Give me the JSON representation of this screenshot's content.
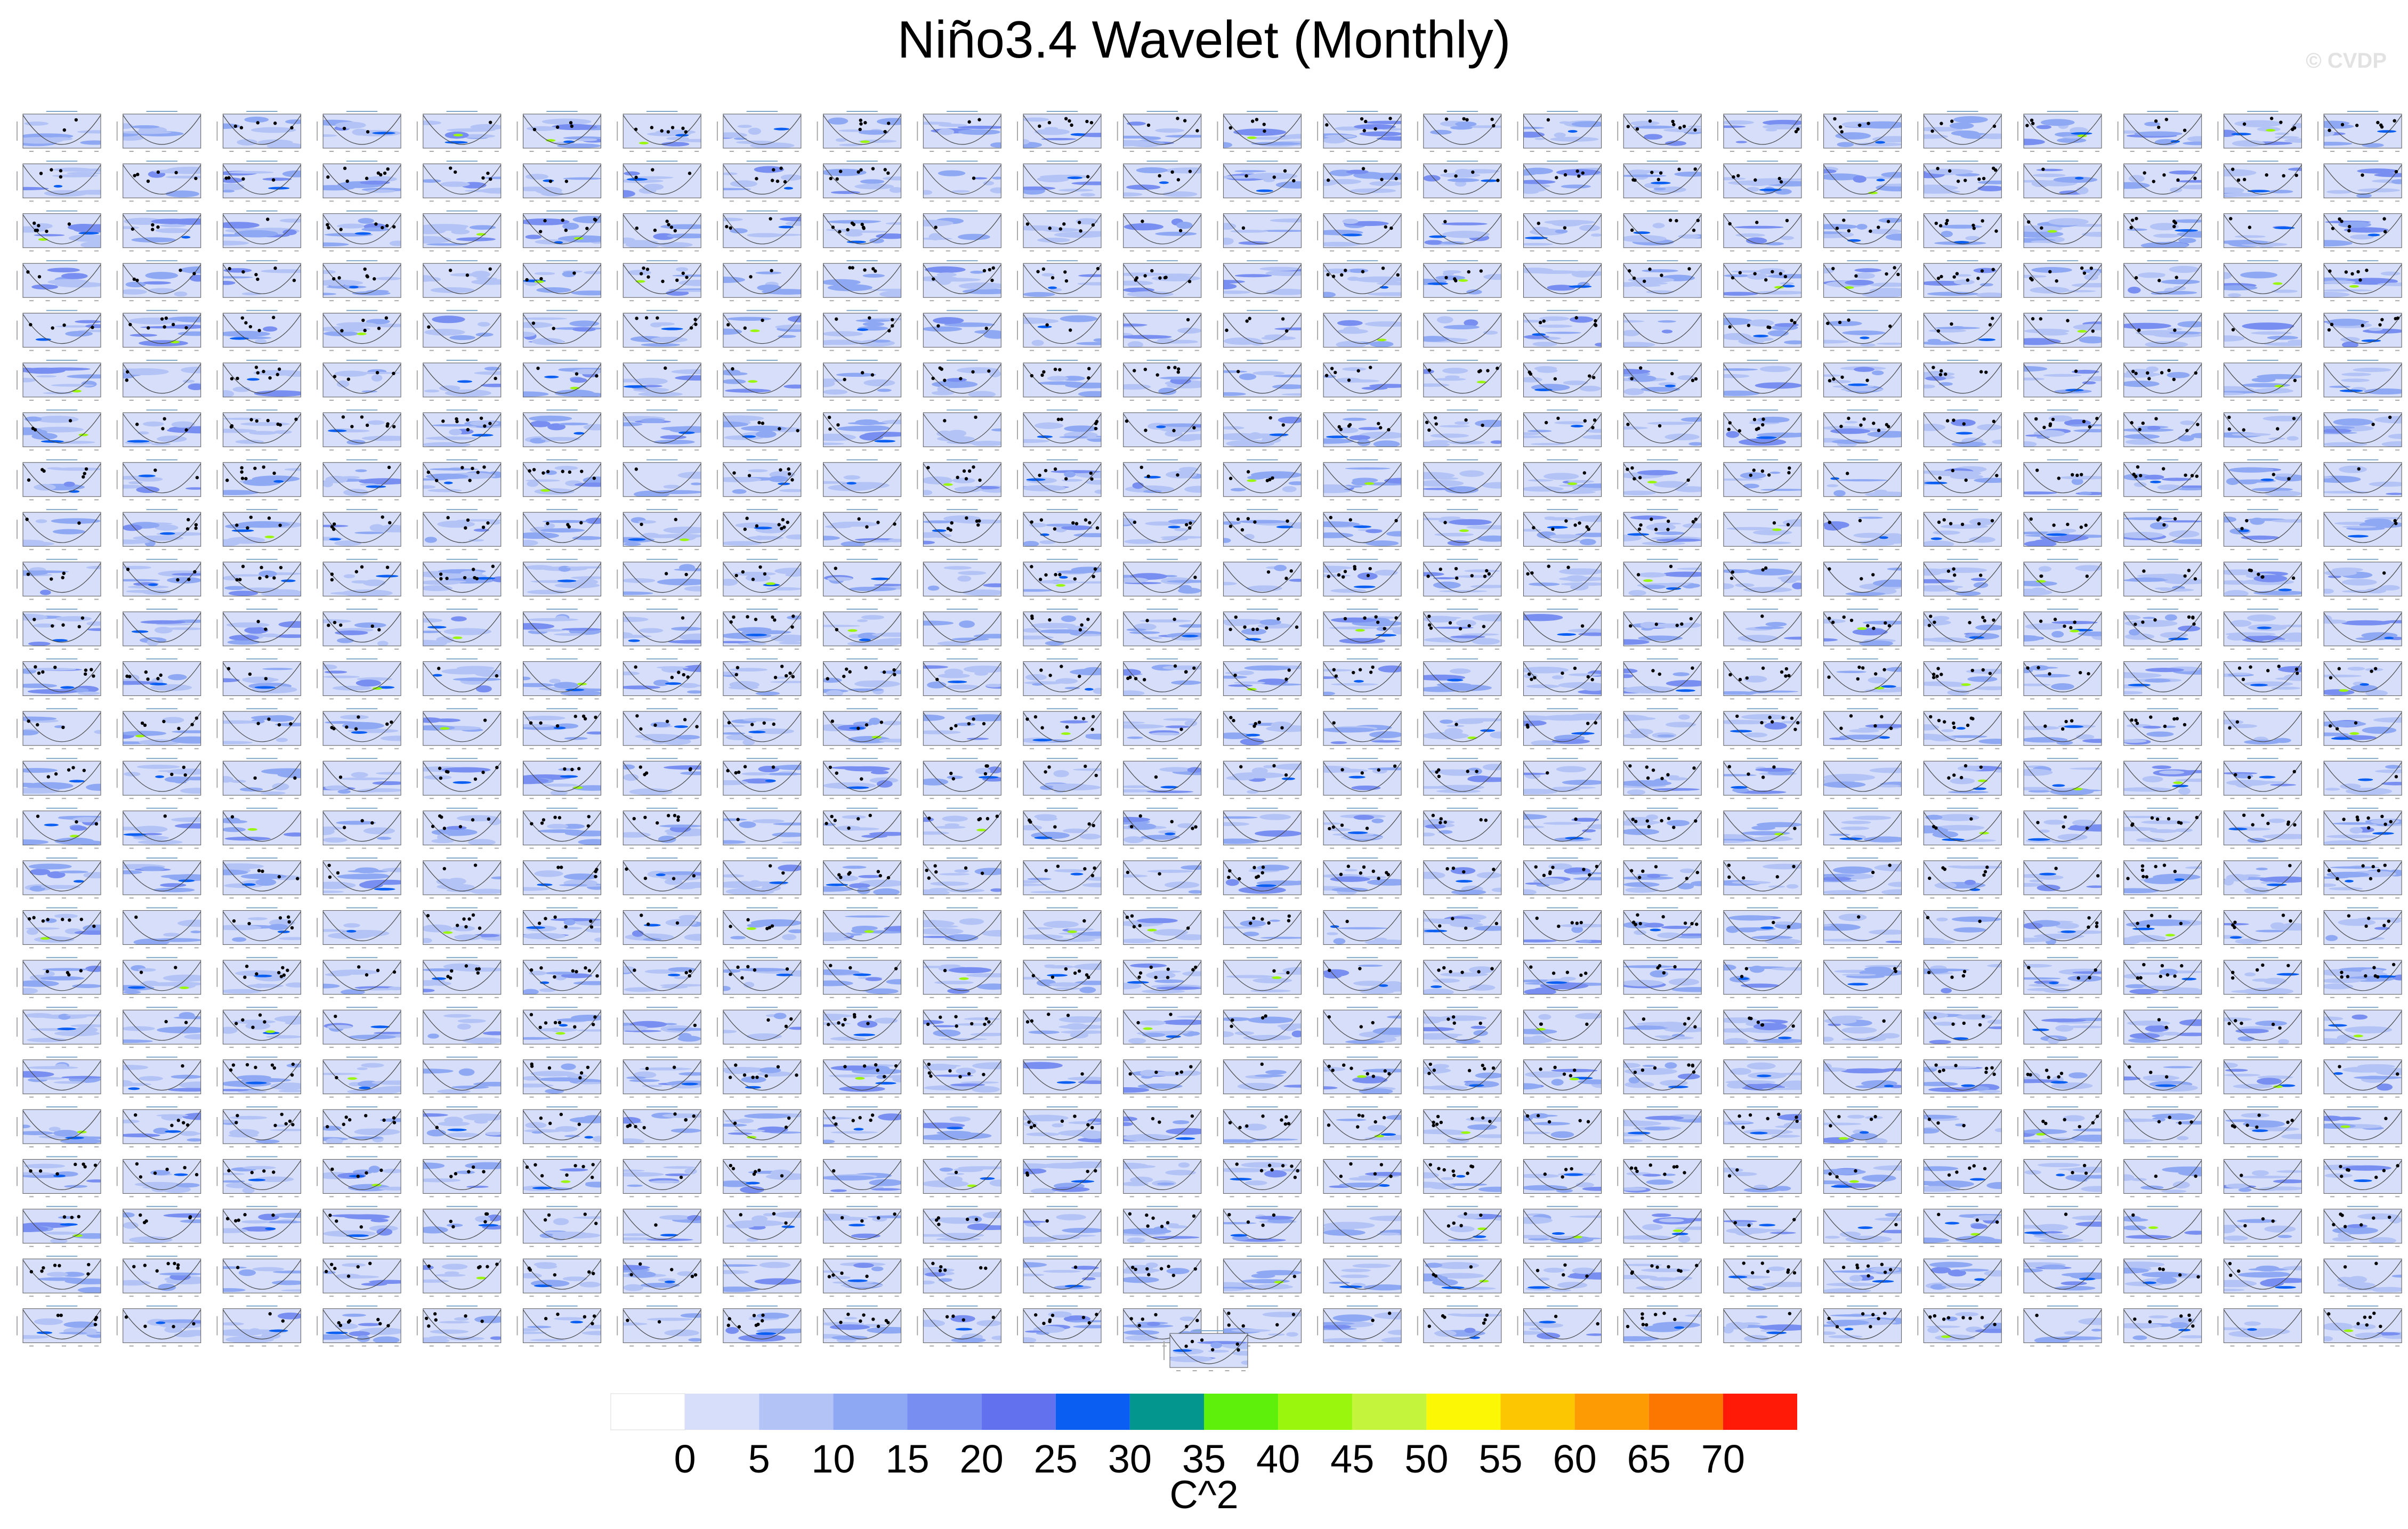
{
  "title": "Niño3.4 Wavelet (Monthly)",
  "watermark": "© CVDP",
  "chart_data": {
    "type": "heatmap",
    "description_of_layout": "grid of wavelet power panels",
    "panel_grid": {
      "columns": 24,
      "rows": 25,
      "extra_panels": 1
    },
    "colorbar": {
      "levels": [
        0,
        5,
        10,
        15,
        20,
        25,
        30,
        35,
        40,
        45,
        50,
        55,
        60,
        65,
        70
      ],
      "tick_labels": [
        "0",
        "5",
        "10",
        "15",
        "20",
        "25",
        "30",
        "35",
        "40",
        "45",
        "50",
        "55",
        "60",
        "65",
        "70"
      ],
      "colors": [
        "#ffffff",
        "#d6def9",
        "#b3c3f6",
        "#8fa8f3",
        "#788ef0",
        "#6271ed",
        "#0a5ff2",
        "#03968f",
        "#5ef00a",
        "#9bf60e",
        "#c4f53c",
        "#fbf705",
        "#fcc603",
        "#fc9b03",
        "#fc7602",
        "#fe1a07"
      ],
      "label": "C^2"
    }
  }
}
